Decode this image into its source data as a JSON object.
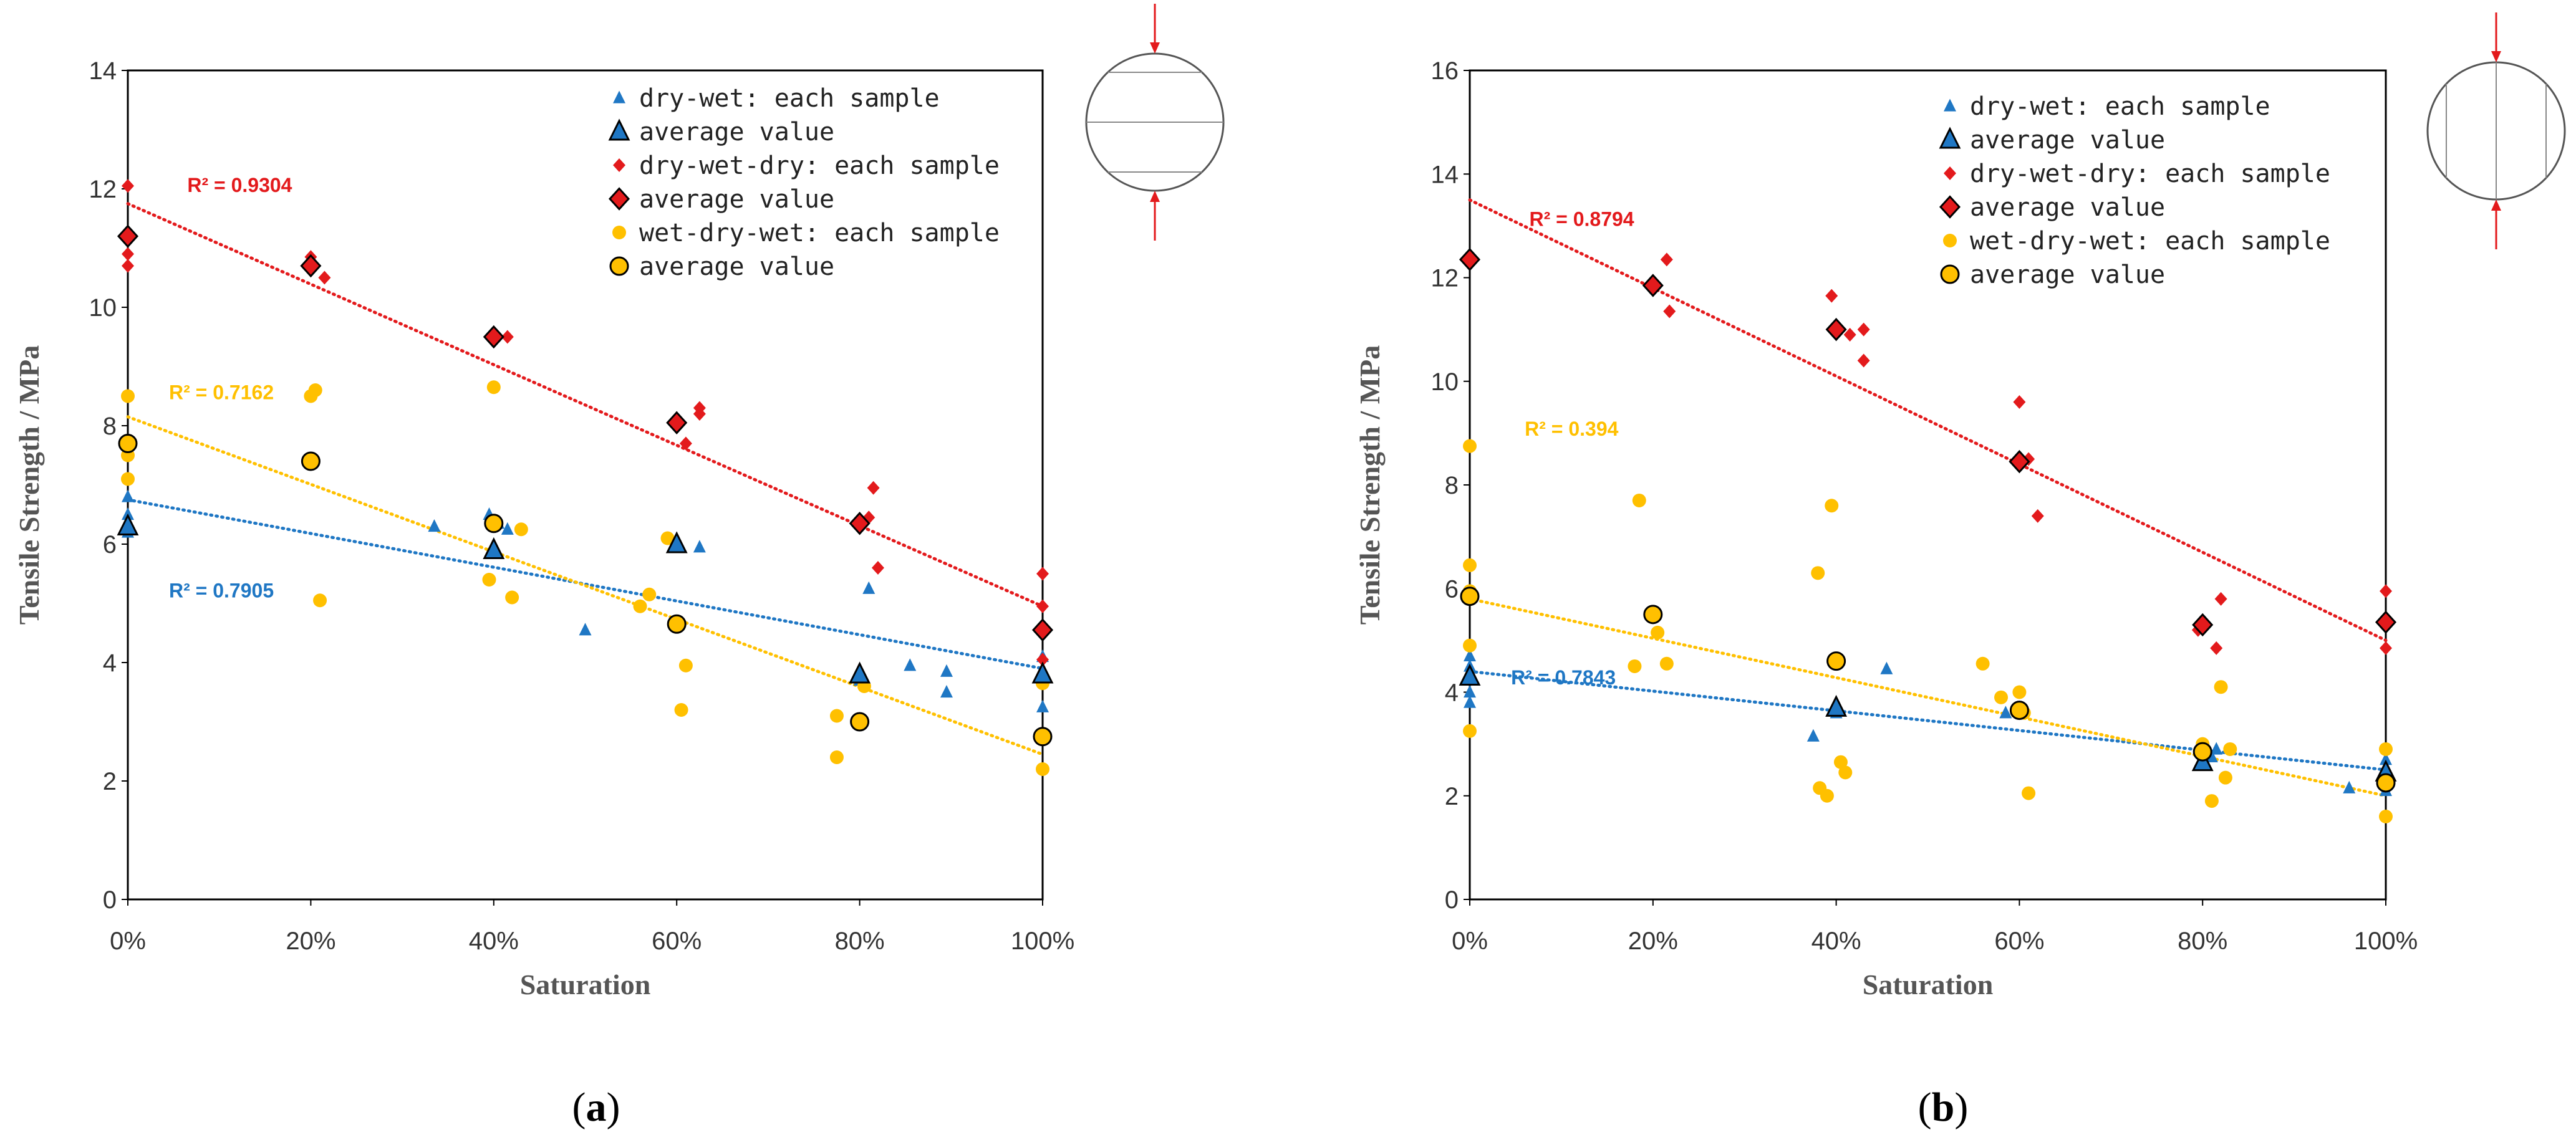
{
  "colors": {
    "dw": "#1f77c4",
    "dwd": "#e31a1c",
    "wdw": "#ffc000",
    "axis": "#000000",
    "tick": "#333333"
  },
  "legend_labels": [
    "dry-wet: each sample",
    "average value",
    "dry-wet-dry: each sample",
    "average value",
    "wet-dry-wet: each sample",
    "average value"
  ],
  "chart_data": [
    {
      "id": "a",
      "type": "scatter",
      "caption": "a",
      "xlabel": "Saturation",
      "ylabel": "Tensile Strength / MPa",
      "xlim": [
        0,
        100
      ],
      "ylim": [
        0,
        14
      ],
      "yticks": [
        0,
        2,
        4,
        6,
        8,
        10,
        12,
        14
      ],
      "xticks": [
        0,
        20,
        40,
        60,
        80,
        100
      ],
      "xtick_labels": [
        "0%",
        "20%",
        "40%",
        "60%",
        "80%",
        "100%"
      ],
      "specimen_diagram": "horizontal",
      "series": [
        {
          "name": "dry-wet",
          "color_key": "dw",
          "marker": "triangle",
          "samples": [
            [
              0,
              6.8
            ],
            [
              0,
              6.5
            ],
            [
              0,
              6.35
            ],
            [
              0,
              6.2
            ],
            [
              33.5,
              6.3
            ],
            [
              39.5,
              6.5
            ],
            [
              40.5,
              6.35
            ],
            [
              41.5,
              6.25
            ],
            [
              50,
              4.55
            ],
            [
              60,
              6.05
            ],
            [
              62.5,
              5.95
            ],
            [
              80,
              3.7
            ],
            [
              81,
              5.25
            ],
            [
              85.5,
              3.95
            ],
            [
              89.5,
              3.85
            ],
            [
              89.5,
              3.5
            ],
            [
              100,
              4.1
            ],
            [
              100,
              3.7
            ],
            [
              100,
              3.25
            ]
          ],
          "averages": [
            [
              0,
              6.3
            ],
            [
              40,
              5.9
            ],
            [
              60,
              6.0
            ],
            [
              80,
              3.8
            ],
            [
              100,
              3.8
            ]
          ],
          "r2_label": "R² = 0.7905",
          "trend": [
            [
              0,
              6.75
            ],
            [
              100,
              3.9
            ]
          ],
          "r2_pos": [
            4.5,
            5.1
          ]
        },
        {
          "name": "dry-wet-dry",
          "color_key": "dwd",
          "marker": "diamond",
          "samples": [
            [
              0,
              12.05
            ],
            [
              0,
              10.9
            ],
            [
              0,
              10.7
            ],
            [
              20,
              10.85
            ],
            [
              21.5,
              10.5
            ],
            [
              41.5,
              9.5
            ],
            [
              61,
              7.7
            ],
            [
              62.5,
              8.3
            ],
            [
              62.5,
              8.2
            ],
            [
              81,
              6.45
            ],
            [
              81.5,
              6.95
            ],
            [
              82,
              5.6
            ],
            [
              100,
              5.5
            ],
            [
              100,
              4.95
            ],
            [
              100,
              4.05
            ]
          ],
          "averages": [
            [
              0,
              11.2
            ],
            [
              20,
              10.7
            ],
            [
              40,
              9.5
            ],
            [
              60,
              8.05
            ],
            [
              80,
              6.35
            ],
            [
              100,
              4.55
            ]
          ],
          "r2_label": "R² = 0.9304",
          "trend": [
            [
              0,
              11.75
            ],
            [
              100,
              4.95
            ]
          ],
          "r2_pos": [
            6.5,
            11.95
          ]
        },
        {
          "name": "wet-dry-wet",
          "color_key": "wdw",
          "marker": "circle",
          "samples": [
            [
              0,
              8.5
            ],
            [
              0,
              7.5
            ],
            [
              0,
              7.1
            ],
            [
              20,
              8.5
            ],
            [
              20.5,
              8.6
            ],
            [
              21,
              5.05
            ],
            [
              39.5,
              5.4
            ],
            [
              40,
              8.65
            ],
            [
              42,
              5.1
            ],
            [
              43,
              6.25
            ],
            [
              56,
              4.95
            ],
            [
              57,
              5.15
            ],
            [
              59,
              6.1
            ],
            [
              60.5,
              3.2
            ],
            [
              61,
              3.95
            ],
            [
              77.5,
              3.1
            ],
            [
              77.5,
              2.4
            ],
            [
              80.5,
              3.6
            ],
            [
              100,
              3.65
            ],
            [
              100,
              2.2
            ]
          ],
          "averages": [
            [
              0,
              7.7
            ],
            [
              20,
              7.4
            ],
            [
              40,
              6.35
            ],
            [
              60,
              4.65
            ],
            [
              80,
              3.0
            ],
            [
              100,
              2.75
            ]
          ],
          "r2_label": "R² = 0.7162",
          "trend": [
            [
              0,
              8.15
            ],
            [
              100,
              2.45
            ]
          ],
          "r2_pos": [
            4.5,
            8.45
          ]
        }
      ]
    },
    {
      "id": "b",
      "type": "scatter",
      "caption": "b",
      "xlabel": "Saturation",
      "ylabel": "Tensile Strength / MPa",
      "xlim": [
        0,
        100
      ],
      "ylim": [
        0,
        16
      ],
      "yticks": [
        0,
        2,
        4,
        6,
        8,
        10,
        12,
        14,
        16
      ],
      "xticks": [
        0,
        20,
        40,
        60,
        80,
        100
      ],
      "xtick_labels": [
        "0%",
        "20%",
        "40%",
        "60%",
        "80%",
        "100%"
      ],
      "specimen_diagram": "vertical",
      "series": [
        {
          "name": "dry-wet",
          "color_key": "dw",
          "marker": "triangle",
          "samples": [
            [
              0,
              4.7
            ],
            [
              0,
              4.5
            ],
            [
              0,
              4.0
            ],
            [
              0,
              3.8
            ],
            [
              37.5,
              3.15
            ],
            [
              40,
              3.6
            ],
            [
              45.5,
              4.45
            ],
            [
              58.5,
              3.6
            ],
            [
              81,
              2.75
            ],
            [
              81.5,
              2.9
            ],
            [
              96,
              2.15
            ],
            [
              100,
              2.7
            ],
            [
              100,
              2.4
            ],
            [
              100,
              2.1
            ]
          ],
          "averages": [
            [
              0,
              4.3
            ],
            [
              40,
              3.7
            ],
            [
              80,
              2.65
            ],
            [
              100,
              2.45
            ]
          ],
          "r2_label": "R² = 0.7843",
          "trend": [
            [
              0,
              4.4
            ],
            [
              100,
              2.5
            ]
          ],
          "r2_pos": [
            4.5,
            4.15
          ]
        },
        {
          "name": "dry-wet-dry",
          "color_key": "dwd",
          "marker": "diamond",
          "samples": [
            [
              21.5,
              12.35
            ],
            [
              21.8,
              11.35
            ],
            [
              39.5,
              11.65
            ],
            [
              41.5,
              10.9
            ],
            [
              43,
              11.0
            ],
            [
              43,
              10.4
            ],
            [
              60,
              9.6
            ],
            [
              61,
              8.5
            ],
            [
              62,
              7.4
            ],
            [
              79.5,
              5.2
            ],
            [
              81.5,
              4.85
            ],
            [
              82,
              5.8
            ],
            [
              100,
              5.95
            ],
            [
              100,
              4.85
            ]
          ],
          "averages": [
            [
              0,
              12.35
            ],
            [
              20,
              11.85
            ],
            [
              40,
              11.0
            ],
            [
              60,
              8.45
            ],
            [
              80,
              5.3
            ],
            [
              100,
              5.35
            ]
          ],
          "r2_label": "R² = 0.8794",
          "trend": [
            [
              0,
              13.5
            ],
            [
              100,
              5.0
            ]
          ],
          "r2_pos": [
            6.5,
            13.0
          ]
        },
        {
          "name": "wet-dry-wet",
          "color_key": "wdw",
          "marker": "circle",
          "samples": [
            [
              0,
              8.75
            ],
            [
              0,
              6.45
            ],
            [
              0,
              5.95
            ],
            [
              0,
              4.9
            ],
            [
              0,
              3.25
            ],
            [
              18,
              4.5
            ],
            [
              18.5,
              7.7
            ],
            [
              20.5,
              5.15
            ],
            [
              21.5,
              4.55
            ],
            [
              38,
              6.3
            ],
            [
              38.2,
              2.15
            ],
            [
              39,
              2.0
            ],
            [
              39.5,
              7.6
            ],
            [
              40.5,
              2.65
            ],
            [
              41,
              2.45
            ],
            [
              56,
              4.55
            ],
            [
              58,
              3.9
            ],
            [
              60,
              4.0
            ],
            [
              60.5,
              3.6
            ],
            [
              61,
              2.05
            ],
            [
              80,
              3.0
            ],
            [
              81,
              1.9
            ],
            [
              82,
              4.1
            ],
            [
              82.5,
              2.35
            ],
            [
              83,
              2.9
            ],
            [
              100,
              2.9
            ],
            [
              100,
              2.3
            ],
            [
              100,
              1.6
            ]
          ],
          "averages": [
            [
              0,
              5.85
            ],
            [
              20,
              5.5
            ],
            [
              40,
              4.6
            ],
            [
              60,
              3.65
            ],
            [
              80,
              2.85
            ],
            [
              100,
              2.25
            ]
          ],
          "r2_label": "R² = 0.394",
          "trend": [
            [
              0,
              5.8
            ],
            [
              100,
              2.0
            ]
          ],
          "r2_pos": [
            6.0,
            8.95
          ]
        }
      ]
    }
  ]
}
